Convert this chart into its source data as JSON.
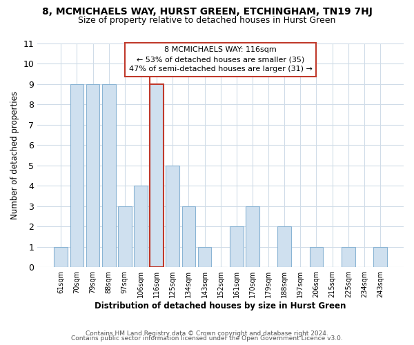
{
  "title": "8, MCMICHAELS WAY, HURST GREEN, ETCHINGHAM, TN19 7HJ",
  "subtitle": "Size of property relative to detached houses in Hurst Green",
  "xlabel": "Distribution of detached houses by size in Hurst Green",
  "ylabel": "Number of detached properties",
  "categories": [
    "61sqm",
    "70sqm",
    "79sqm",
    "88sqm",
    "97sqm",
    "106sqm",
    "116sqm",
    "125sqm",
    "134sqm",
    "143sqm",
    "152sqm",
    "161sqm",
    "170sqm",
    "179sqm",
    "188sqm",
    "197sqm",
    "206sqm",
    "215sqm",
    "225sqm",
    "234sqm",
    "243sqm"
  ],
  "values": [
    1,
    9,
    9,
    9,
    3,
    4,
    9,
    5,
    3,
    1,
    0,
    2,
    3,
    0,
    2,
    0,
    1,
    0,
    1,
    0,
    1
  ],
  "highlight_index": 6,
  "bar_color": "#cfe0ef",
  "bar_edgecolor": "#8ab4d4",
  "highlight_bar_edgecolor": "#c0392b",
  "annotation_box_edgecolor": "#c0392b",
  "annotation_title": "8 MCMICHAELS WAY: 116sqm",
  "annotation_line1": "← 53% of detached houses are smaller (35)",
  "annotation_line2": "47% of semi-detached houses are larger (31) →",
  "ylim": [
    0,
    11
  ],
  "yticks": [
    0,
    1,
    2,
    3,
    4,
    5,
    6,
    7,
    8,
    9,
    10,
    11
  ],
  "footer_line1": "Contains HM Land Registry data © Crown copyright and database right 2024.",
  "footer_line2": "Contains public sector information licensed under the Open Government Licence v3.0.",
  "background_color": "#ffffff",
  "plot_bg_color": "#ffffff",
  "grid_color": "#d0dce8"
}
